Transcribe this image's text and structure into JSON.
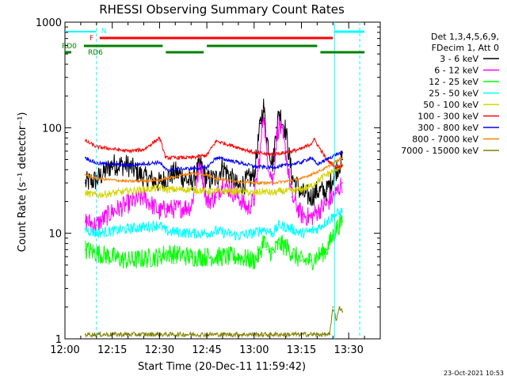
{
  "chart_data": {
    "type": "line",
    "title": "RHESSI Observing Summary Count Rates",
    "xlabel": "Start Time (20-Dec-11 11:59:42)",
    "ylabel": "Count Rate (s⁻¹ detector⁻¹)",
    "yscale": "log",
    "xlim_minutes": [
      0,
      100
    ],
    "ylim": [
      1,
      1000
    ],
    "x_ticks": [
      {
        "m": 0,
        "label": "12:00"
      },
      {
        "m": 15,
        "label": "12:15"
      },
      {
        "m": 30,
        "label": "12:30"
      },
      {
        "m": 45,
        "label": "12:45"
      },
      {
        "m": 60,
        "label": "13:00"
      },
      {
        "m": 75,
        "label": "13:15"
      },
      {
        "m": 90,
        "label": "13:30"
      }
    ],
    "y_ticks": [
      {
        "v": 1,
        "label": "1"
      },
      {
        "v": 10,
        "label": "10"
      },
      {
        "v": 100,
        "label": "100"
      },
      {
        "v": 1000,
        "label": "1000"
      }
    ],
    "legend": {
      "placement": "top-right",
      "header": [
        "Det 1,3,4,5,6,9,",
        "FDecim 1, Att 0"
      ]
    },
    "series": [
      {
        "name": "3 - 6 keV",
        "color": "#000000",
        "x": [
          6.5,
          10,
          15,
          20,
          25,
          30,
          32,
          35,
          40,
          43,
          45,
          48,
          50,
          55,
          58,
          60,
          62,
          63,
          64,
          66,
          67,
          68,
          70,
          72,
          75,
          78,
          80,
          83,
          86,
          88
        ],
        "y": [
          30,
          32,
          45,
          44,
          34,
          30,
          33,
          38,
          30,
          45,
          32,
          33,
          43,
          27,
          32,
          35,
          110,
          160,
          80,
          45,
          100,
          140,
          95,
          34,
          24,
          22,
          25,
          25,
          40,
          50
        ]
      },
      {
        "name": "6 - 12 keV",
        "color": "#ff00ff",
        "x": [
          6.5,
          10,
          15,
          20,
          25,
          30,
          32,
          35,
          40,
          43,
          45,
          48,
          50,
          55,
          58,
          60,
          62,
          63,
          64,
          66,
          67,
          68,
          70,
          72,
          75,
          78,
          80,
          83,
          86,
          88
        ],
        "y": [
          13,
          12,
          16,
          19,
          22,
          16,
          17,
          17,
          18,
          45,
          20,
          22,
          30,
          22,
          17,
          21,
          60,
          150,
          55,
          30,
          75,
          110,
          60,
          22,
          15,
          14,
          16,
          19,
          24,
          30
        ]
      },
      {
        "name": "12 - 25 keV",
        "color": "#00ff00",
        "x": [
          6.5,
          10,
          20,
          30,
          32,
          40,
          45,
          48,
          55,
          60,
          62,
          63,
          64,
          66,
          68,
          70,
          72,
          75,
          78,
          80,
          83,
          86,
          88
        ],
        "y": [
          7,
          6.5,
          5.5,
          6,
          6.5,
          6,
          6,
          6,
          6,
          5.5,
          6.5,
          9,
          7,
          6.5,
          8,
          7.5,
          6.5,
          5.5,
          5.5,
          6,
          7,
          11,
          13
        ]
      },
      {
        "name": "25 - 50 keV",
        "color": "#00ffff",
        "x": [
          6.5,
          10,
          20,
          30,
          32,
          40,
          45,
          48,
          55,
          60,
          63,
          66,
          68,
          72,
          75,
          78,
          80,
          83,
          86,
          88
        ],
        "y": [
          11,
          10,
          11,
          12,
          10.5,
          10,
          10,
          10.5,
          9.5,
          10,
          11,
          10,
          12,
          11,
          10,
          10.5,
          11,
          13,
          15,
          16
        ]
      },
      {
        "name": "50 - 100 keV",
        "color": "#d4d400",
        "x": [
          6.5,
          10,
          20,
          30,
          32,
          40,
          45,
          48,
          55,
          60,
          63,
          66,
          68,
          72,
          75,
          78,
          80,
          83,
          86,
          88
        ],
        "y": [
          24,
          23,
          25,
          27,
          26,
          26,
          25,
          25,
          25,
          24,
          25,
          24,
          25,
          25,
          26,
          28,
          31,
          36,
          40,
          45
        ]
      },
      {
        "name": "100 - 300 keV",
        "color": "#ff0000",
        "x": [
          6.5,
          10,
          20,
          25,
          30,
          32,
          40,
          45,
          48,
          55,
          60,
          65,
          70,
          75,
          78,
          79,
          83,
          86,
          88
        ],
        "y": [
          75,
          66,
          60,
          62,
          80,
          52,
          52,
          55,
          75,
          65,
          58,
          56,
          58,
          63,
          70,
          78,
          50,
          42,
          44
        ]
      },
      {
        "name": "300 - 800 keV",
        "color": "#0000ff",
        "x": [
          6.5,
          10,
          20,
          30,
          32,
          40,
          45,
          48,
          55,
          60,
          65,
          70,
          75,
          78,
          80,
          83,
          86,
          88
        ],
        "y": [
          52,
          46,
          44,
          47,
          40,
          41,
          42,
          52,
          47,
          43,
          42,
          44,
          47,
          52,
          45,
          50,
          56,
          58
        ]
      },
      {
        "name": "800 - 7000 keV",
        "color": "#ff8000",
        "x": [
          6.5,
          10,
          20,
          30,
          32,
          40,
          45,
          48,
          55,
          60,
          65,
          70,
          75,
          78,
          80,
          83,
          86,
          88
        ],
        "y": [
          36,
          33,
          31,
          32,
          33,
          37,
          36,
          33,
          31,
          30,
          30,
          31,
          33,
          36,
          38,
          42,
          48,
          52
        ]
      },
      {
        "name": "7000 - 15000 keV",
        "color": "#808000",
        "x": [
          6.5,
          10,
          20,
          30,
          40,
          50,
          60,
          70,
          80,
          84,
          85,
          86,
          87,
          88
        ],
        "y": [
          1.1,
          1.1,
          1.1,
          1.1,
          1.1,
          1.1,
          1.1,
          1.1,
          1.1,
          1.1,
          2,
          1.5,
          2,
          1.8
        ]
      }
    ],
    "flags": [
      {
        "label": "N",
        "color": "#00ffff"
      },
      {
        "label": "F",
        "color": "#ff0000"
      },
      {
        "label": "RD0",
        "color": "#008000"
      },
      {
        "label": "RD6",
        "color": "#008000"
      }
    ],
    "timestamp": "23-Oct-2021 10:53"
  }
}
